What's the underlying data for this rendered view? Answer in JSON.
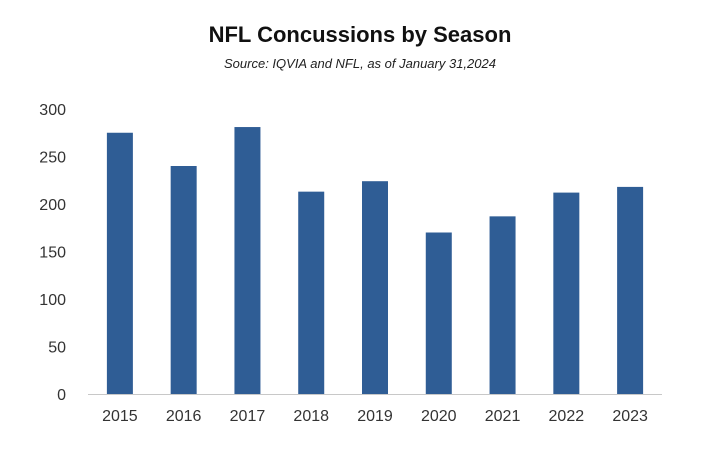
{
  "colors": {
    "bar": "#2f5d95",
    "axis": "#c8c8c8"
  },
  "chart_data": {
    "type": "bar",
    "title": "NFL Concussions by Season",
    "subtitle": "Source: IQVIA and NFL, as of January 31,2024",
    "xlabel": "",
    "ylabel": "",
    "categories": [
      "2015",
      "2016",
      "2017",
      "2018",
      "2019",
      "2020",
      "2021",
      "2022",
      "2023"
    ],
    "values": [
      275,
      240,
      281,
      213,
      224,
      170,
      187,
      212,
      218
    ],
    "ylim": [
      0,
      300
    ],
    "yticks": [
      0,
      50,
      100,
      150,
      200,
      250,
      300
    ],
    "grid": false,
    "legend": "none"
  }
}
